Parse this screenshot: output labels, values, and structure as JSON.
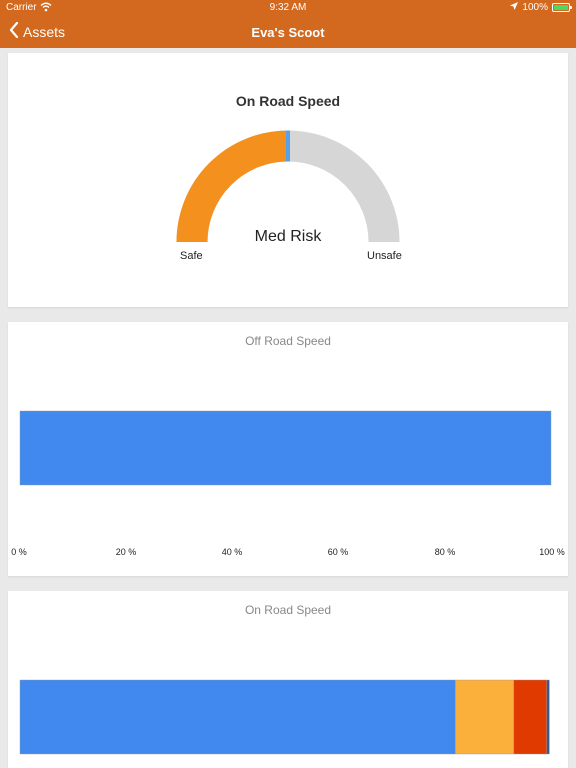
{
  "status": {
    "carrier": "Carrier",
    "time": "9:32 AM",
    "battery": "100%",
    "wifi_icon": "wifi-icon",
    "location_icon": "location-arrow-icon"
  },
  "nav": {
    "back_label": "Assets",
    "title": "Eva's Scoot"
  },
  "gauge": {
    "title": "On Road Speed",
    "risk_label": "Med Risk",
    "min_label": "Safe",
    "max_label": "Unsafe",
    "value_fraction": 0.5,
    "fill_color": "#f4901e",
    "track_color": "#d6d6d6",
    "needle_color": "#5aa0e6"
  },
  "off_road": {
    "title": "Off Road Speed",
    "ticks": [
      "0 %",
      "20 %",
      "40 %",
      "60 %",
      "80 %",
      "100 %"
    ]
  },
  "on_road": {
    "title": "On Road Speed"
  },
  "chart_data": [
    {
      "type": "bar",
      "orientation": "horizontal",
      "stacked": true,
      "title": "Off Road Speed",
      "xlim": [
        0,
        100
      ],
      "xticks": [
        "0 %",
        "20 %",
        "40 %",
        "60 %",
        "80 %",
        "100 %"
      ],
      "series": [
        {
          "values": [
            100
          ],
          "color": "#4189ef"
        }
      ]
    },
    {
      "type": "bar",
      "orientation": "horizontal",
      "stacked": true,
      "title": "On Road Speed",
      "xlim": [
        0,
        100
      ],
      "series": [
        {
          "values": [
            82
          ],
          "color": "#4189ef"
        },
        {
          "values": [
            11
          ],
          "color": "#fbb03b"
        },
        {
          "values": [
            6.2
          ],
          "color": "#e03a00"
        },
        {
          "values": [
            0.5
          ],
          "color": "#355a8e"
        }
      ]
    }
  ]
}
